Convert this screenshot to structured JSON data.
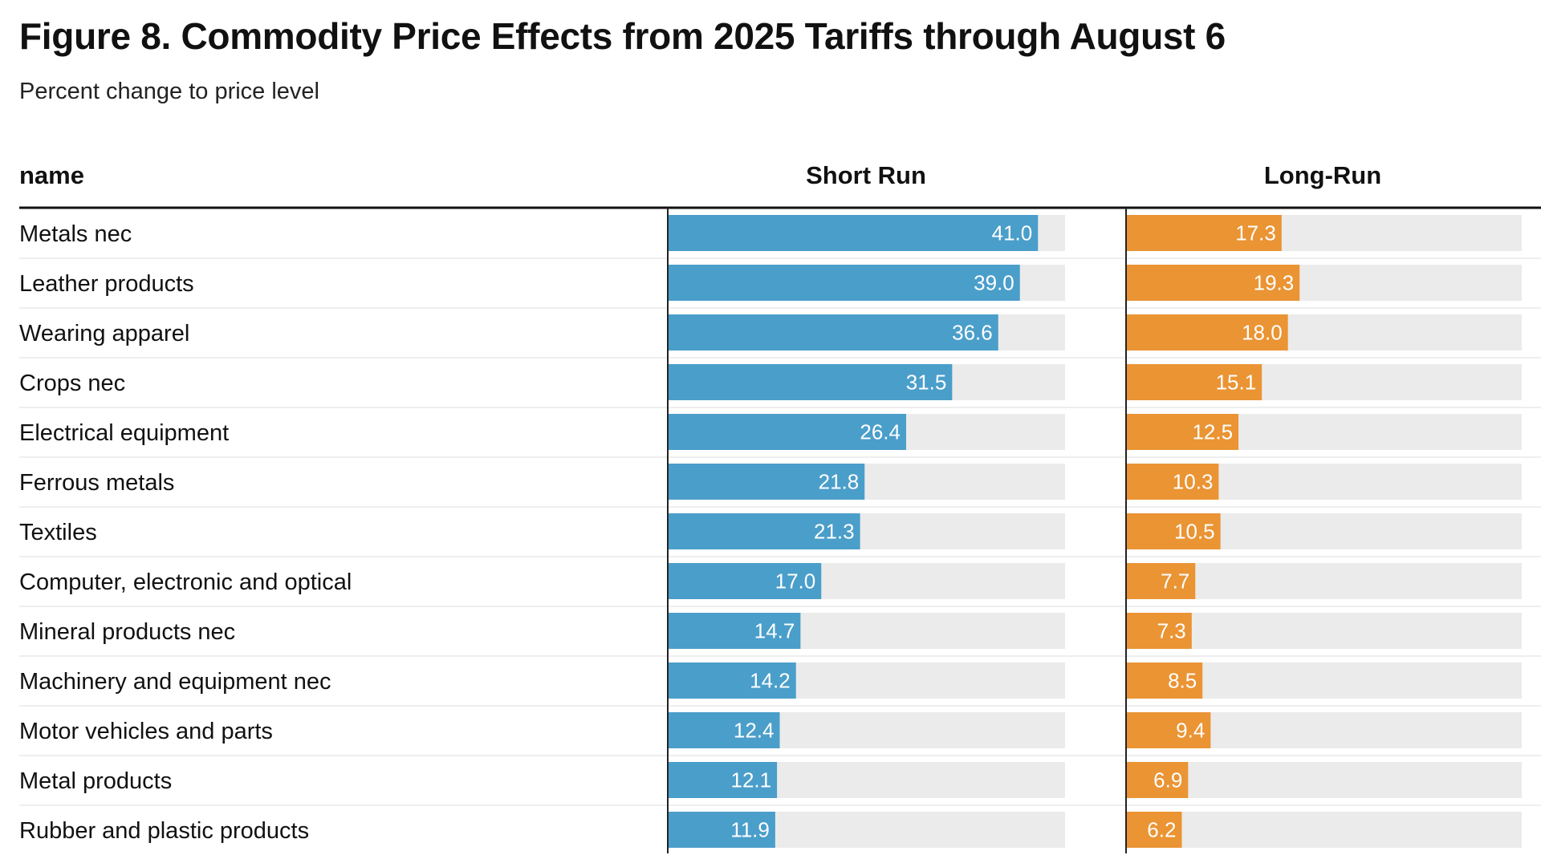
{
  "chart_data": {
    "type": "bar",
    "title": "Figure 8. Commodity Price Effects from 2025 Tariffs through August 6",
    "subtitle": "Percent change to price level",
    "column_header": "name",
    "categories": [
      "Metals nec",
      "Leather products",
      "Wearing apparel",
      "Crops nec",
      "Electrical equipment",
      "Ferrous metals",
      "Textiles",
      "Computer, electronic and optical",
      "Mineral products nec",
      "Machinery and equipment nec",
      "Motor vehicles and parts",
      "Metal products",
      "Rubber and plastic products"
    ],
    "series": [
      {
        "name": "Short Run",
        "color": "#4a9eca",
        "values": [
          41.0,
          39.0,
          36.6,
          31.5,
          26.4,
          21.8,
          21.3,
          17.0,
          14.7,
          14.2,
          12.4,
          12.1,
          11.9
        ],
        "value_labels": [
          "41.0",
          "39.0",
          "36.6",
          "31.5",
          "26.4",
          "21.8",
          "21.3",
          "17.0",
          "14.7",
          "14.2",
          "12.4",
          "12.1",
          "11.9"
        ],
        "scale_max": 44
      },
      {
        "name": "Long-Run",
        "color": "#ea9434",
        "values": [
          17.3,
          19.3,
          18.0,
          15.1,
          12.5,
          10.3,
          10.5,
          7.7,
          7.3,
          8.5,
          9.4,
          6.9,
          6.2
        ],
        "value_labels": [
          "17.3",
          "19.3",
          "18.0",
          "15.1",
          "12.5",
          "10.3",
          "10.5",
          "7.7",
          "7.3",
          "8.5",
          "9.4",
          "6.9",
          "6.2"
        ],
        "scale_max": 44
      }
    ],
    "background_bar_color": "#ebebeb",
    "grid": false,
    "legend": "none"
  }
}
